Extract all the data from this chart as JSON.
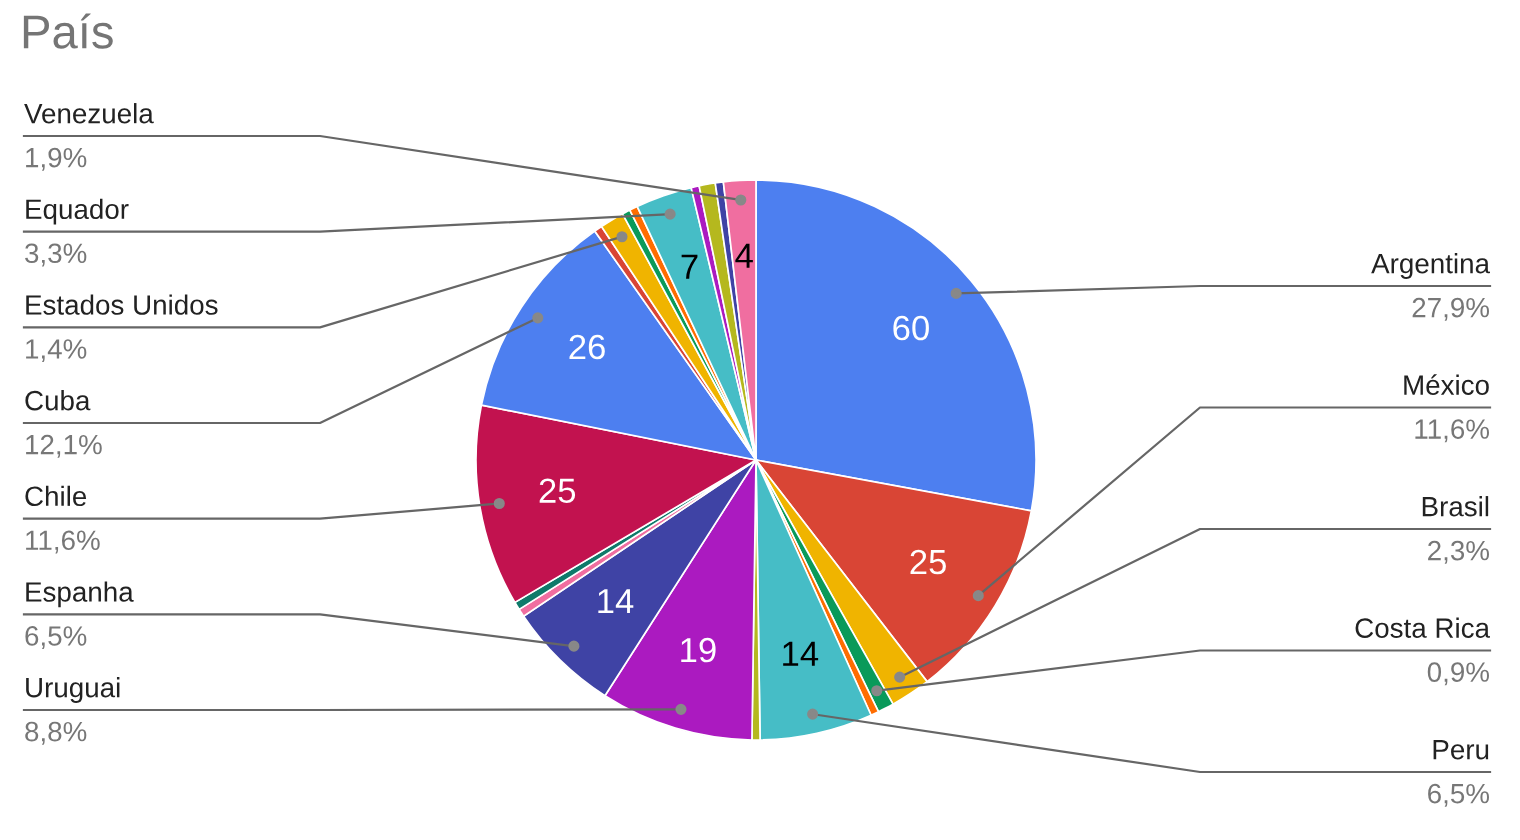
{
  "chart_data": {
    "type": "pie",
    "title": "País",
    "categories": [
      "Argentina\n27,9%",
      "México\n11,6%",
      "Brasil\n2,3%",
      "Costa Rica\n0,9%",
      null,
      "Peru\n6,5%",
      null,
      "Uruguai\n8,8%",
      "Espanha\n6,5%",
      null,
      null,
      "Chile\n11,6%",
      "Cuba\n12,1%",
      null,
      "Estados Unidos\n1,4%",
      null,
      null,
      "Equador\n3,3%",
      null,
      null,
      null,
      "Venezuela\n1,9%"
    ],
    "values": [
      60,
      25,
      5,
      2,
      1,
      14,
      1,
      19,
      14,
      1,
      1,
      25,
      26,
      1,
      3,
      1,
      1,
      7,
      1,
      2,
      1,
      4
    ],
    "value_labels": [
      "60",
      "25",
      null,
      null,
      null,
      "14",
      null,
      "19",
      "14",
      null,
      null,
      "25",
      "26",
      null,
      null,
      null,
      null,
      "7",
      null,
      null,
      null,
      "4"
    ],
    "colors": [
      "#4d7ff0",
      "#d94535",
      "#f0b400",
      "#0a9a5a",
      "#ff6d01",
      "#46bdc6",
      "#b5b81e",
      "#ab1ac0",
      "#3f43a5",
      "#f06ea0",
      "#0e7a6a",
      "#c2124f",
      "#4d7ff0",
      "#d94535",
      "#f0b400",
      "#0a9a5a",
      "#ff6d01",
      "#46bdc6",
      "#ab1ac0",
      "#b5b81e",
      "#3f43a5",
      "#f06ea0"
    ],
    "legend": false
  }
}
